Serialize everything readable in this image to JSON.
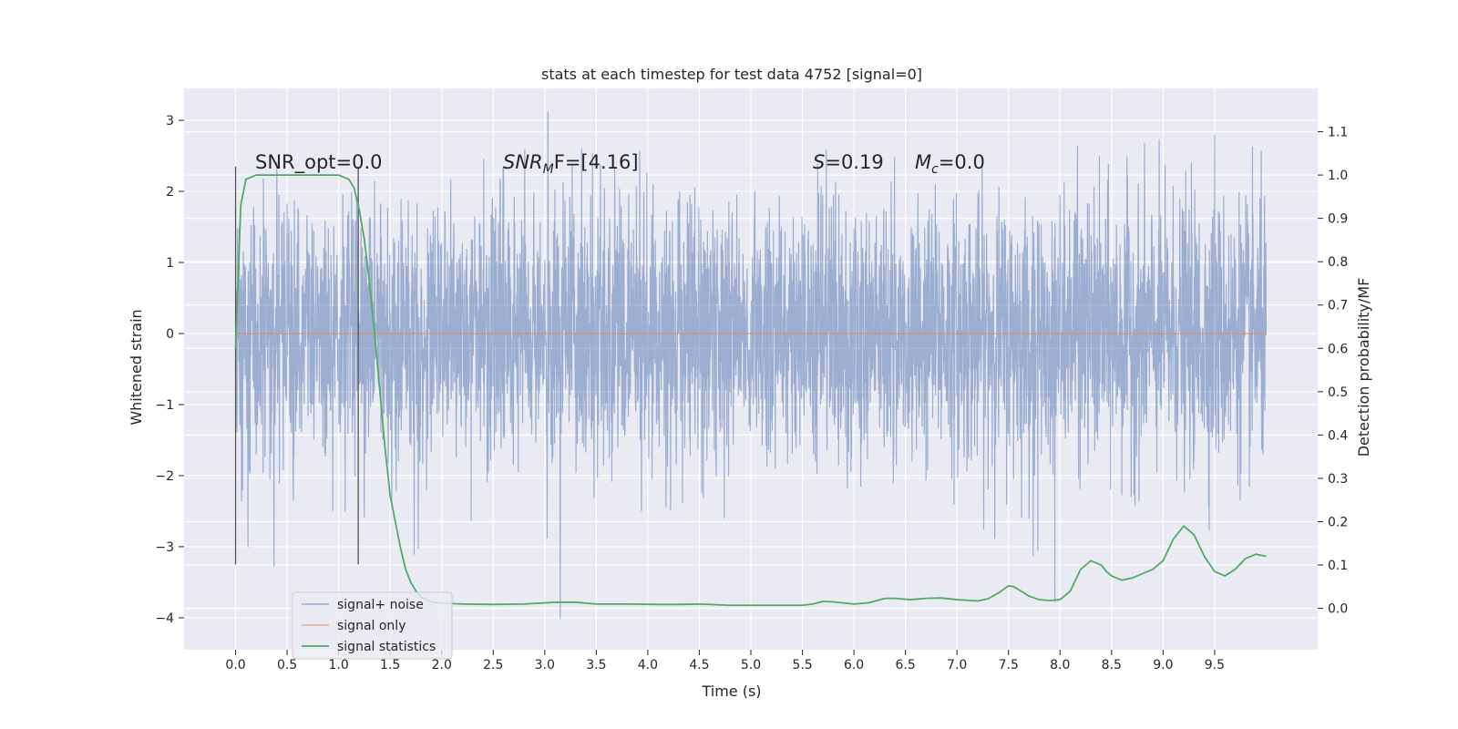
{
  "chart_data": {
    "type": "line",
    "title": "stats at each timestep for test data 4752 [signal=0]",
    "xlabel": "Time (s)",
    "ylabel": "Whitened strain",
    "y2label": "Detection probability/MF",
    "xlim": [
      -0.5,
      10.5
    ],
    "ylim": [
      -4.45,
      3.45
    ],
    "y2lim": [
      -0.0955,
      1.2
    ],
    "x_ticks": [
      "0.0",
      "0.5",
      "1.0",
      "1.5",
      "2.0",
      "2.5",
      "3.0",
      "3.5",
      "4.0",
      "4.5",
      "5.0",
      "5.5",
      "6.0",
      "6.5",
      "7.0",
      "7.5",
      "8.0",
      "8.5",
      "9.0",
      "9.5"
    ],
    "y_ticks": [
      "3",
      "2",
      "1",
      "0",
      "−1",
      "−2",
      "−3",
      "−4"
    ],
    "y2_ticks": [
      "1.1",
      "1.0",
      "0.9",
      "0.8",
      "0.7",
      "0.6",
      "0.5",
      "0.4",
      "0.3",
      "0.2",
      "0.1",
      "0.0"
    ],
    "grid": true,
    "legend_position": "lower-left",
    "annotations": {
      "snr_opt": "SNR_opt=0.0",
      "snr_mf_main": "SNR",
      "snr_mf_sub": "M",
      "snr_mf_rest": "F=[4.16]",
      "s_italic": "S",
      "s_rest": "=0.19",
      "mc_main": "M",
      "mc_sub": "c",
      "mc_rest": "=0.0"
    },
    "vlines": [
      {
        "x": 0.0,
        "y_range": [
          -3.25,
          2.35
        ]
      },
      {
        "x": 1.19,
        "y_range": [
          -3.25,
          2.35
        ]
      }
    ],
    "series": [
      {
        "name": "signal+ noise",
        "color": "#4c72b0",
        "description": "noisy whitened strain, mostly within ±1.6, extremes to about +3.1 and -4.0",
        "duration": [
          0.0,
          10.0
        ],
        "extremes": [
          {
            "x": 3.03,
            "y": 3.12
          },
          {
            "x": 3.15,
            "y": -4.02
          },
          {
            "x": 7.95,
            "y": -3.78
          },
          {
            "x": 8.0,
            "y": 1.95
          },
          {
            "x": 9.5,
            "y": 2.8
          }
        ]
      },
      {
        "name": "signal only",
        "color": "#dd8452",
        "x": [
          0.0,
          10.0
        ],
        "y": [
          0.0,
          0.0
        ]
      },
      {
        "name": "signal statistics",
        "color": "#55a868",
        "axis": "right",
        "x": [
          0.0,
          0.05,
          0.1,
          0.15,
          0.2,
          0.3,
          0.4,
          0.5,
          0.6,
          0.7,
          0.8,
          0.9,
          1.0,
          1.1,
          1.15,
          1.2,
          1.25,
          1.3,
          1.35,
          1.4,
          1.45,
          1.5,
          1.55,
          1.6,
          1.65,
          1.7,
          1.75,
          1.8,
          1.85,
          1.9,
          2.0,
          2.2,
          2.5,
          2.8,
          3.1,
          3.3,
          3.5,
          3.8,
          4.1,
          4.3,
          4.5,
          4.8,
          5.0,
          5.3,
          5.5,
          5.6,
          5.7,
          5.8,
          6.0,
          6.15,
          6.3,
          6.4,
          6.55,
          6.7,
          6.85,
          7.0,
          7.2,
          7.3,
          7.4,
          7.5,
          7.55,
          7.6,
          7.7,
          7.8,
          7.9,
          8.0,
          8.1,
          8.2,
          8.3,
          8.4,
          8.45,
          8.5,
          8.6,
          8.7,
          8.8,
          8.9,
          9.0,
          9.1,
          9.2,
          9.3,
          9.4,
          9.5,
          9.6,
          9.7,
          9.8,
          9.9,
          10.0
        ],
        "y": [
          0.6,
          0.93,
          0.99,
          0.995,
          1.0,
          1.0,
          1.0,
          1.0,
          1.0,
          1.0,
          1.0,
          1.0,
          1.0,
          0.99,
          0.97,
          0.92,
          0.85,
          0.75,
          0.63,
          0.5,
          0.37,
          0.26,
          0.2,
          0.14,
          0.09,
          0.06,
          0.04,
          0.025,
          0.02,
          0.015,
          0.012,
          0.01,
          0.009,
          0.01,
          0.014,
          0.014,
          0.01,
          0.01,
          0.009,
          0.009,
          0.01,
          0.007,
          0.007,
          0.007,
          0.007,
          0.01,
          0.016,
          0.015,
          0.01,
          0.013,
          0.023,
          0.023,
          0.02,
          0.023,
          0.024,
          0.02,
          0.017,
          0.022,
          0.035,
          0.052,
          0.05,
          0.043,
          0.028,
          0.02,
          0.018,
          0.02,
          0.04,
          0.09,
          0.11,
          0.1,
          0.085,
          0.075,
          0.065,
          0.07,
          0.08,
          0.09,
          0.11,
          0.16,
          0.19,
          0.17,
          0.12,
          0.085,
          0.075,
          0.09,
          0.115,
          0.125,
          0.12
        ]
      }
    ]
  }
}
